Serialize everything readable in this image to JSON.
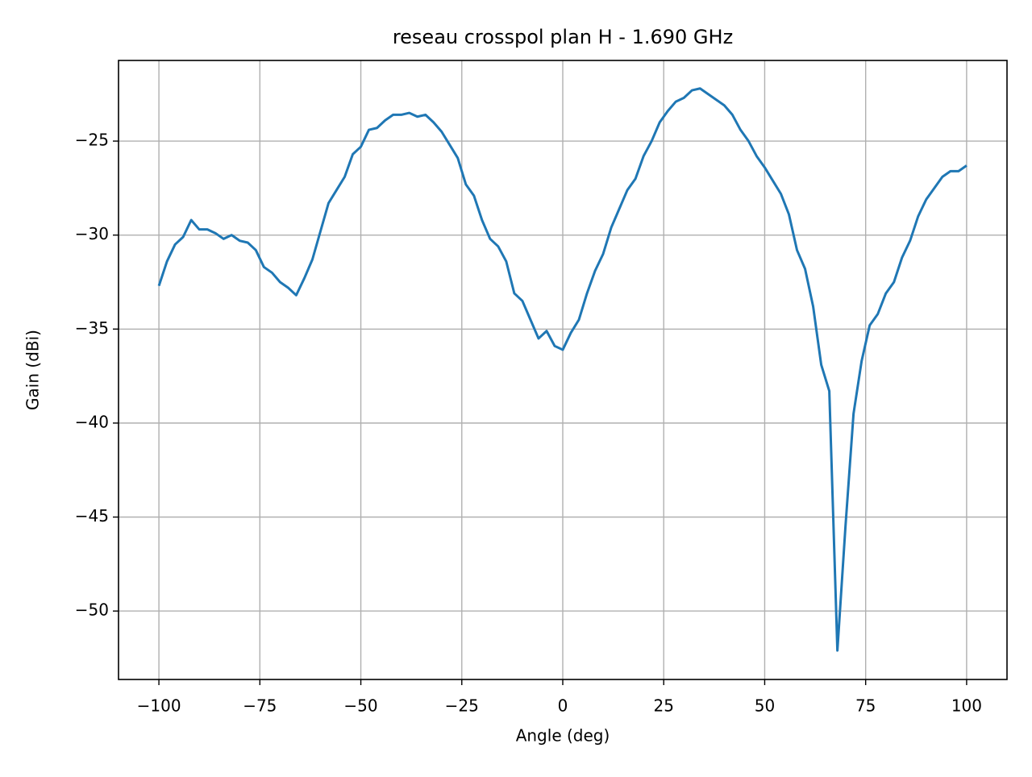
{
  "chart_data": {
    "type": "line",
    "title": "reseau crosspol plan H - 1.690 GHz",
    "x_label": "Angle (deg)",
    "y_label": "Gain (dBi)",
    "x": [
      -100,
      -98,
      -96,
      -94,
      -92,
      -90,
      -88,
      -86,
      -84,
      -82,
      -80,
      -78,
      -76,
      -74,
      -72,
      -70,
      -68,
      -66,
      -64,
      -62,
      -60,
      -58,
      -56,
      -54,
      -52,
      -50,
      -48,
      -46,
      -44,
      -42,
      -40,
      -38,
      -36,
      -34,
      -32,
      -30,
      -28,
      -26,
      -24,
      -22,
      -20,
      -18,
      -16,
      -14,
      -12,
      -10,
      -8,
      -6,
      -4,
      -2,
      0,
      2,
      4,
      6,
      8,
      10,
      12,
      14,
      16,
      18,
      20,
      22,
      24,
      26,
      28,
      30,
      32,
      34,
      36,
      38,
      40,
      42,
      44,
      46,
      48,
      50,
      52,
      54,
      56,
      58,
      60,
      62,
      64,
      66,
      68,
      70,
      72,
      74,
      76,
      78,
      80,
      82,
      84,
      86,
      88,
      90,
      92,
      94,
      96,
      98,
      100
    ],
    "series": [
      {
        "name": "crosspol",
        "color": "#1f77b4",
        "values": [
          -32.7,
          -31.4,
          -30.5,
          -30.1,
          -29.2,
          -29.7,
          -29.7,
          -29.9,
          -30.2,
          -30.0,
          -30.3,
          -30.4,
          -30.8,
          -31.7,
          -32.0,
          -32.5,
          -32.8,
          -33.2,
          -32.3,
          -31.3,
          -29.8,
          -28.3,
          -27.6,
          -26.9,
          -25.7,
          -25.3,
          -24.4,
          -24.3,
          -23.9,
          -23.6,
          -23.6,
          -23.5,
          -23.7,
          -23.6,
          -24.0,
          -24.5,
          -25.2,
          -25.9,
          -27.3,
          -27.9,
          -29.2,
          -30.2,
          -30.6,
          -31.4,
          -33.1,
          -33.5,
          -34.5,
          -35.5,
          -35.1,
          -35.9,
          -36.1,
          -35.2,
          -34.5,
          -33.1,
          -31.9,
          -31.0,
          -29.6,
          -28.6,
          -27.6,
          -27.0,
          -25.8,
          -25.0,
          -24.0,
          -23.4,
          -22.9,
          -22.7,
          -22.3,
          -22.2,
          -22.5,
          -22.8,
          -23.1,
          -23.6,
          -24.4,
          -25.0,
          -25.8,
          -26.4,
          -27.1,
          -27.8,
          -28.9,
          -30.8,
          -31.8,
          -33.8,
          -36.9,
          -38.3,
          -52.1,
          -45.5,
          -39.5,
          -36.7,
          -34.8,
          -34.2,
          -33.1,
          -32.5,
          -31.2,
          -30.3,
          -29.0,
          -28.1,
          -27.5,
          -26.9,
          -26.6,
          -26.6,
          -26.3
        ]
      }
    ],
    "xlim": [
      -110,
      110
    ],
    "ylim": [
      -53.64,
      -20.71
    ],
    "xticks": [
      {
        "value": -100,
        "label": "−100"
      },
      {
        "value": -75,
        "label": "−75"
      },
      {
        "value": -50,
        "label": "−50"
      },
      {
        "value": -25,
        "label": "−25"
      },
      0,
      25,
      50,
      75,
      100
    ],
    "yticks": [
      {
        "value": -50,
        "label": "−50"
      },
      {
        "value": -45,
        "label": "−45"
      },
      {
        "value": -40,
        "label": "−40"
      },
      {
        "value": -35,
        "label": "−35"
      },
      {
        "value": -30,
        "label": "−30"
      },
      {
        "value": -25,
        "label": "−25"
      }
    ],
    "grid": true
  }
}
